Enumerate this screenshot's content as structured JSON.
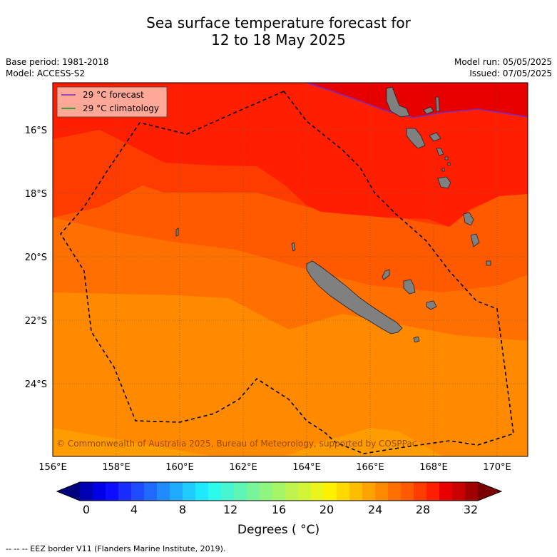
{
  "header": {
    "title_line1": "Sea surface temperature forecast for",
    "title_line2": "12 to 18 May 2025",
    "base_period": "Base period: 1981-2018",
    "model": "Model: ACCESS-S2",
    "model_run": "Model run: 05/05/2025",
    "issued": "Issued: 07/05/2025"
  },
  "legend": {
    "forecast": "29 °C  forecast",
    "climatology": "29 °C  climatology",
    "forecast_color": "#7b2cbf",
    "climatology_color": "#1a8a1a"
  },
  "map": {
    "lat_labels": [
      "16°S",
      "18°S",
      "20°S",
      "22°S",
      "24°S"
    ],
    "lon_labels": [
      "156°E",
      "158°E",
      "160°E",
      "162°E",
      "164°E",
      "166°E",
      "168°E",
      "170°E"
    ],
    "copyright": "© Commonwealth of Australia 2025, Bureau of Meteorology, supported by COSPPac",
    "land_color": "#808080",
    "eez_style": "dashed"
  },
  "colorbar": {
    "labels": [
      "0",
      "4",
      "8",
      "12",
      "16",
      "20",
      "24",
      "28",
      "32"
    ],
    "unit": "Degrees ($^\\circ$C)",
    "unit_display": "Degrees ( °C)",
    "colors": [
      "#00007f",
      "#0000b3",
      "#0000e6",
      "#0d0dff",
      "#1a2bff",
      "#1f4bff",
      "#1f6bff",
      "#1f8bff",
      "#1fabff",
      "#1fcbff",
      "#1fe9ff",
      "#2dfaeb",
      "#47f5d0",
      "#5ff5b5",
      "#78f598",
      "#8ef57f",
      "#a5f568",
      "#bdf54e",
      "#d3f537",
      "#e9f51d",
      "#fff200",
      "#ffd800",
      "#ffbd00",
      "#ffa300",
      "#ff8a00",
      "#ff7000",
      "#ff5a00",
      "#ff3c00",
      "#ff1e00",
      "#e60000",
      "#c80000",
      "#a00000",
      "#7a0000"
    ]
  },
  "footer": {
    "eez_note": "--  --  -- EEZ border V11 (Flanders Marine Institute, 2019)."
  }
}
